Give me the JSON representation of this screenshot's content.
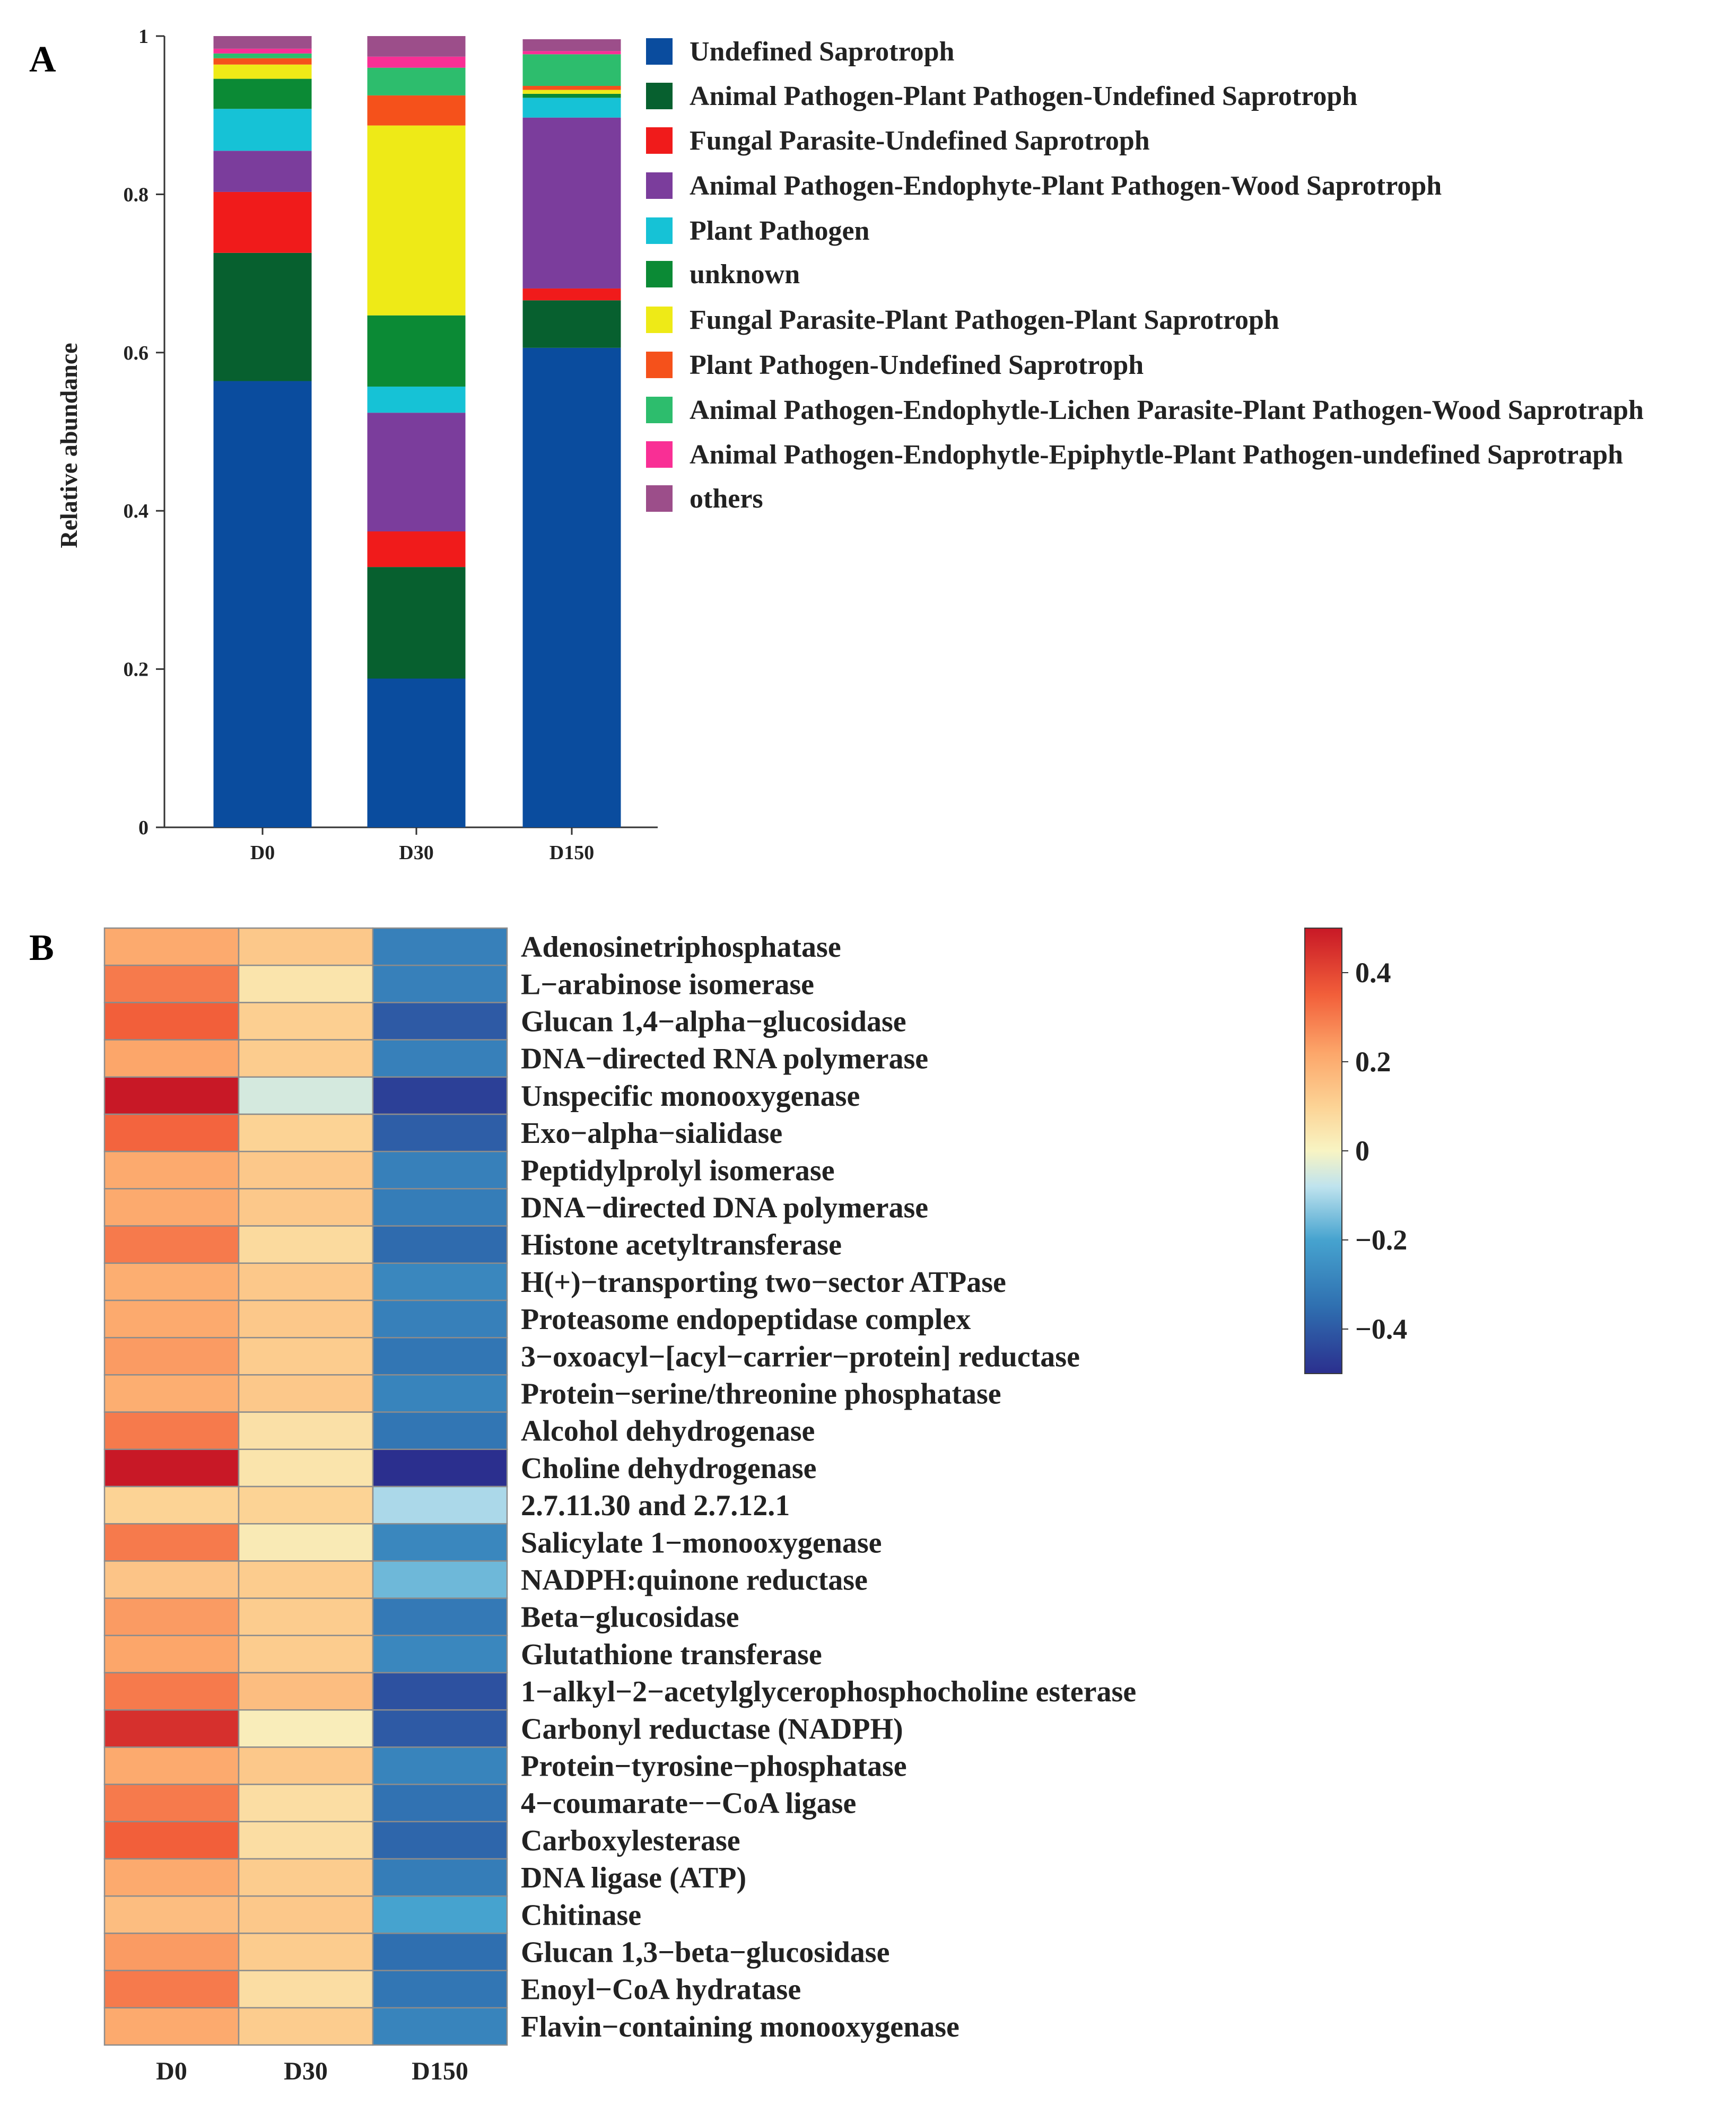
{
  "chart_data": [
    {
      "panel": "A",
      "type": "bar",
      "stacked": true,
      "ylabel": "Relative abundance",
      "ylim": [
        0,
        1
      ],
      "yticks": [
        "0",
        "0.2",
        "0.4",
        "0.6",
        "0.8",
        "1"
      ],
      "categories": [
        "D0",
        "D30",
        "D150"
      ],
      "series": [
        {
          "name": "Undefined Saprotroph",
          "color": "#0a4c9e",
          "values": [
            0.564,
            0.188,
            0.606
          ]
        },
        {
          "name": "Animal Pathogen-Plant Pathogen-Undefined Saprotroph",
          "color": "#07602f",
          "values": [
            0.162,
            0.141,
            0.06
          ]
        },
        {
          "name": "Fungal Parasite-Undefined Saprotroph",
          "color": "#f01b1b",
          "values": [
            0.077,
            0.045,
            0.015
          ]
        },
        {
          "name": "Animal Pathogen-Endophyte-Plant Pathogen-Wood Saprotroph",
          "color": "#7b3d9c",
          "values": [
            0.052,
            0.15,
            0.216
          ]
        },
        {
          "name": "Plant Pathogen",
          "color": "#16c2d6",
          "values": [
            0.053,
            0.033,
            0.025
          ]
        },
        {
          "name": "unknown",
          "color": "#0b8a35",
          "values": [
            0.038,
            0.09,
            0.005
          ]
        },
        {
          "name": "Fungal Parasite-Plant Pathogen-Plant Saprotroph",
          "color": "#eeea17",
          "values": [
            0.018,
            0.24,
            0.005
          ]
        },
        {
          "name": "Plant Pathogen-Undefined Saprotroph",
          "color": "#f5511b",
          "values": [
            0.008,
            0.038,
            0.005
          ]
        },
        {
          "name": "Animal Pathogen-Endophytle-Lichen Parasite-Plant Pathogen-Wood Saprotraph",
          "color": "#2dbd6d",
          "values": [
            0.006,
            0.035,
            0.04
          ]
        },
        {
          "name": "Animal Pathogen-Endophytle-Epiphytle-Plant Pathogen-undefined Saprotraph",
          "color": "#f92f95",
          "values": [
            0.006,
            0.014,
            0.004
          ]
        },
        {
          "name": "others",
          "color": "#9c4e8a",
          "values": [
            0.016,
            0.026,
            0.015
          ]
        }
      ]
    },
    {
      "panel": "B",
      "type": "heatmap",
      "columns": [
        "D0",
        "D30",
        "D150"
      ],
      "colorbar": {
        "ticks": [
          "0.4",
          "0.2",
          "0",
          "−0.2",
          "−0.4"
        ],
        "tick_values": [
          0.4,
          0.2,
          0,
          -0.2,
          -0.4
        ],
        "range": [
          -0.5,
          0.5
        ]
      },
      "rows": [
        {
          "name": "Adenosinetriphosphatase",
          "values": [
            0.21,
            0.13,
            -0.3
          ]
        },
        {
          "name": "L−arabinose isomerase",
          "values": [
            0.3,
            0.05,
            -0.3
          ]
        },
        {
          "name": "Glucan 1,4−alpha−glucosidase",
          "values": [
            0.35,
            0.11,
            -0.4
          ]
        },
        {
          "name": "DNA−directed RNA polymerase",
          "values": [
            0.22,
            0.12,
            -0.3
          ]
        },
        {
          "name": "Unspecific monooxygenase",
          "values": [
            0.5,
            -0.05,
            -0.46
          ]
        },
        {
          "name": "Exo−alpha−sialidase",
          "values": [
            0.34,
            0.1,
            -0.39
          ]
        },
        {
          "name": "Peptidylprolyl isomerase",
          "values": [
            0.21,
            0.13,
            -0.3
          ]
        },
        {
          "name": "DNA−directed DNA polymerase",
          "values": [
            0.21,
            0.13,
            -0.31
          ]
        },
        {
          "name": "Histone acetyltransferase",
          "values": [
            0.3,
            0.08,
            -0.36
          ]
        },
        {
          "name": "H(+)−transporting two−sector ATPase",
          "values": [
            0.2,
            0.13,
            -0.28
          ]
        },
        {
          "name": "Proteasome endopeptidase complex",
          "values": [
            0.21,
            0.13,
            -0.3
          ]
        },
        {
          "name": "3−oxoacyl−[acyl−carrier−protein] reductase",
          "values": [
            0.24,
            0.12,
            -0.33
          ]
        },
        {
          "name": "Protein−serine/threonine phosphatase",
          "values": [
            0.2,
            0.13,
            -0.29
          ]
        },
        {
          "name": "Alcohol dehydrogenase",
          "values": [
            0.3,
            0.06,
            -0.33
          ]
        },
        {
          "name": "Choline dehydrogenase",
          "values": [
            0.5,
            0.05,
            -0.5
          ]
        },
        {
          "name": "2.7.11.30 and 2.7.12.1",
          "values": [
            0.1,
            0.1,
            -0.1
          ]
        },
        {
          "name": "Salicylate 1−monooxygenase",
          "values": [
            0.3,
            0.03,
            -0.28
          ]
        },
        {
          "name": "NADPH:quinone reductase",
          "values": [
            0.14,
            0.12,
            -0.16
          ]
        },
        {
          "name": "Beta−glucosidase",
          "values": [
            0.24,
            0.12,
            -0.32
          ]
        },
        {
          "name": "Glutathione transferase",
          "values": [
            0.22,
            0.12,
            -0.28
          ]
        },
        {
          "name": "1−alkyl−2−acetylglycerophosphocholine esterase",
          "values": [
            0.3,
            0.16,
            -0.42
          ]
        },
        {
          "name": "Carbonyl reductase (NADPH)",
          "values": [
            0.45,
            0.02,
            -0.4
          ]
        },
        {
          "name": "Protein−tyrosine−phosphatase",
          "values": [
            0.21,
            0.13,
            -0.29
          ]
        },
        {
          "name": "4−coumarate−−CoA ligase",
          "values": [
            0.3,
            0.07,
            -0.34
          ]
        },
        {
          "name": "Carboxylesterase",
          "values": [
            0.35,
            0.07,
            -0.37
          ]
        },
        {
          "name": "DNA ligase (ATP)",
          "values": [
            0.21,
            0.12,
            -0.31
          ]
        },
        {
          "name": "Chitinase",
          "values": [
            0.16,
            0.13,
            -0.2
          ]
        },
        {
          "name": "Glucan 1,3−beta−glucosidase",
          "values": [
            0.24,
            0.12,
            -0.35
          ]
        },
        {
          "name": "Enoyl−CoA hydratase",
          "values": [
            0.3,
            0.07,
            -0.33
          ]
        },
        {
          "name": "Flavin−containing monooxygenase",
          "values": [
            0.21,
            0.12,
            -0.29
          ]
        }
      ]
    }
  ],
  "panels": {
    "a_label": "A",
    "b_label": "B"
  }
}
